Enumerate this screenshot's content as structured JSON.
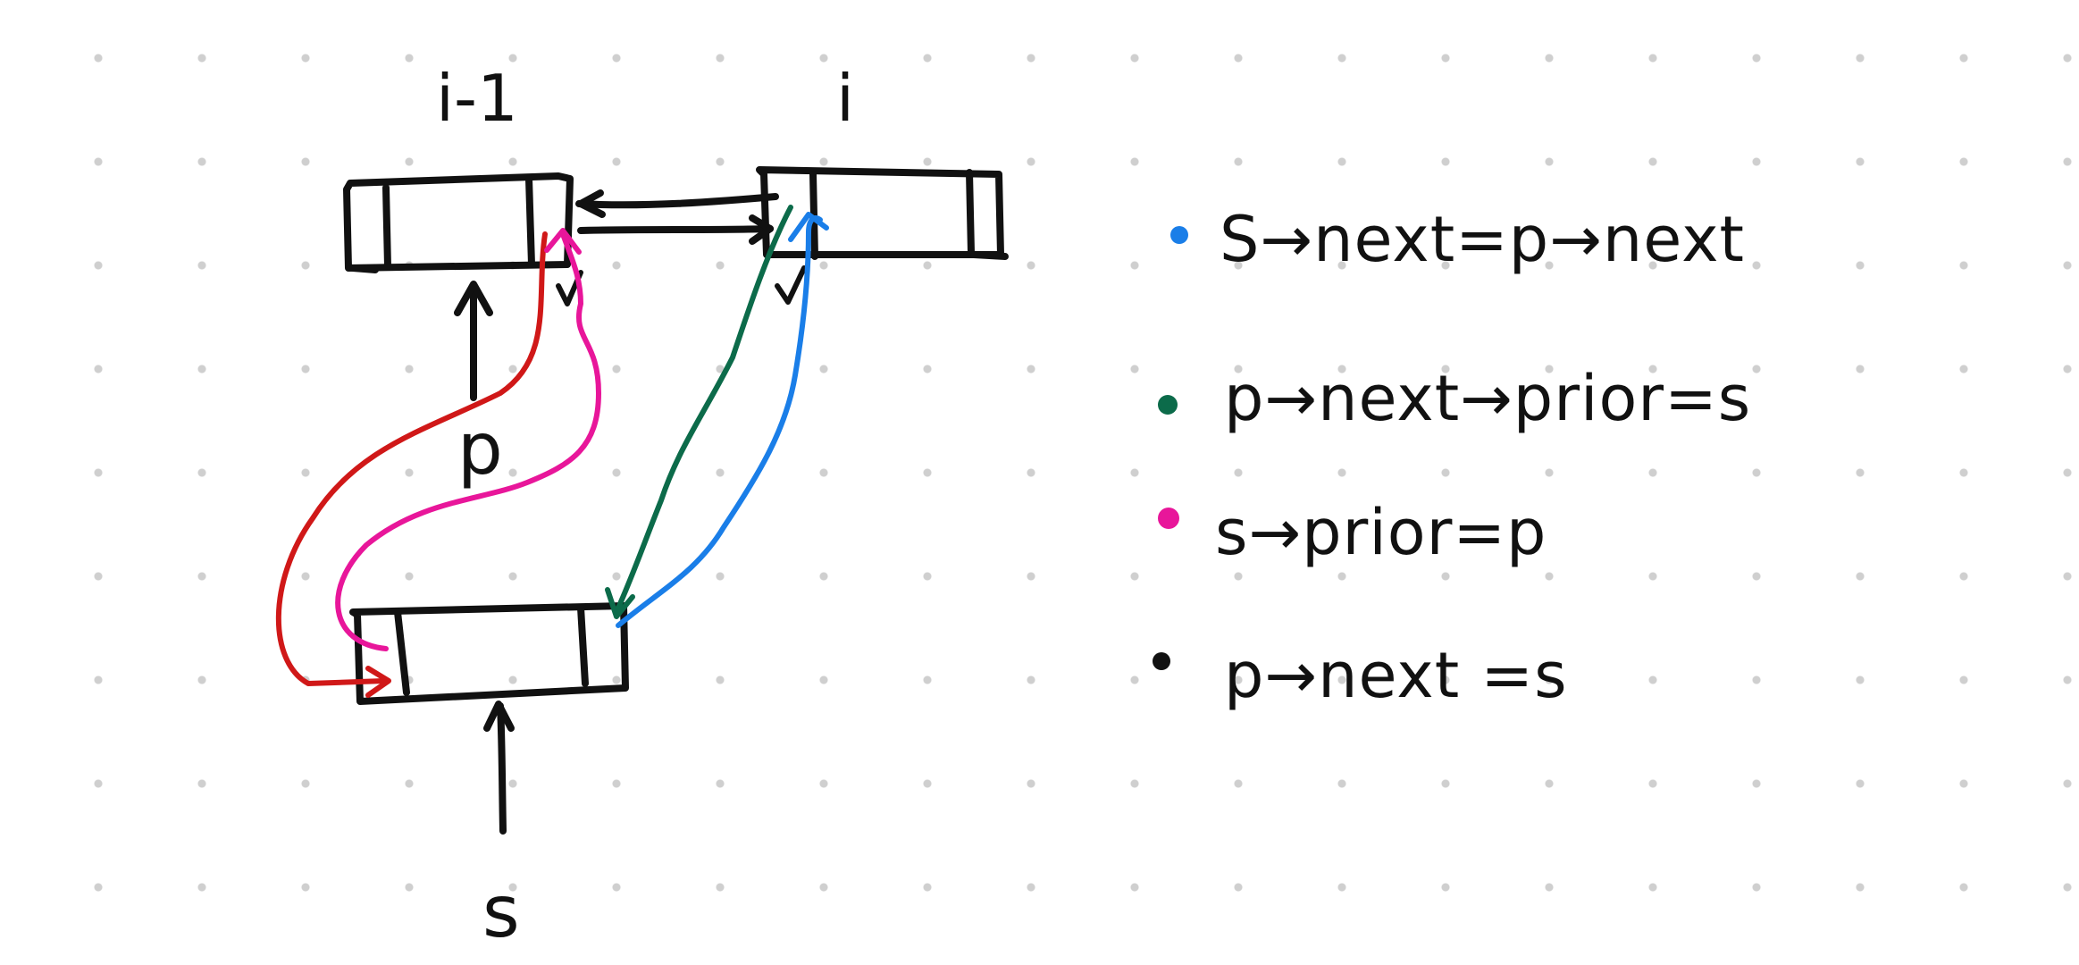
{
  "colors": {
    "ink": "#111111",
    "blue": "#1a7ee8",
    "green": "#0c6b4a",
    "pink": "#e8169a",
    "red": "#d01818",
    "grid_dot": "#cfcfcf"
  },
  "nodes": {
    "prev": {
      "label": "i-1"
    },
    "curr": {
      "label": "i"
    },
    "new": {
      "label": ""
    }
  },
  "pointers": {
    "p": "p",
    "s": "s"
  },
  "legend": [
    {
      "color": "blue",
      "text": "S→next=p→next"
    },
    {
      "color": "green",
      "text": "p→next→prior=s"
    },
    {
      "color": "pink",
      "text": "s→prior=p"
    },
    {
      "color": "ink",
      "text": "p→next =s"
    }
  ]
}
